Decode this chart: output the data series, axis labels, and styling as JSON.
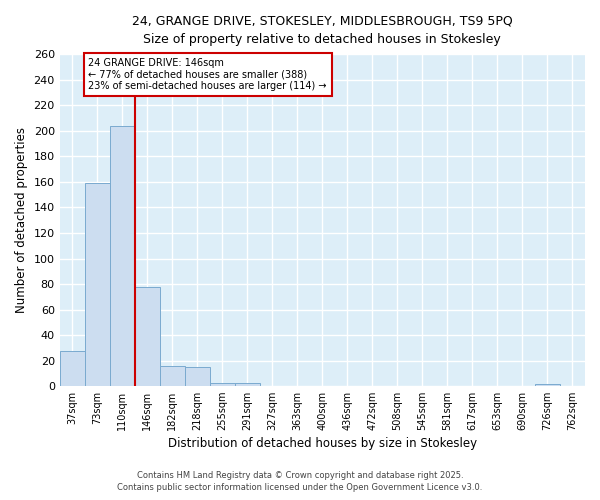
{
  "title_line1": "24, GRANGE DRIVE, STOKESLEY, MIDDLESBROUGH, TS9 5PQ",
  "title_line2": "Size of property relative to detached houses in Stokesley",
  "xlabel": "Distribution of detached houses by size in Stokesley",
  "ylabel": "Number of detached properties",
  "annotation_line1": "24 GRANGE DRIVE: 146sqm",
  "annotation_line2": "← 77% of detached houses are smaller (388)",
  "annotation_line3": "23% of semi-detached houses are larger (114) →",
  "bar_color": "#ccddf0",
  "bar_edge_color": "#7aaacf",
  "ref_line_color": "#cc0000",
  "categories": [
    "37sqm",
    "73sqm",
    "110sqm",
    "146sqm",
    "182sqm",
    "218sqm",
    "255sqm",
    "291sqm",
    "327sqm",
    "363sqm",
    "400sqm",
    "436sqm",
    "472sqm",
    "508sqm",
    "545sqm",
    "581sqm",
    "617sqm",
    "653sqm",
    "690sqm",
    "726sqm",
    "762sqm"
  ],
  "values": [
    28,
    159,
    204,
    78,
    16,
    15,
    3,
    3,
    0,
    0,
    0,
    0,
    0,
    0,
    0,
    0,
    0,
    0,
    0,
    2,
    0
  ],
  "ref_bar_idx": 3,
  "ylim": [
    0,
    260
  ],
  "yticks": [
    0,
    20,
    40,
    60,
    80,
    100,
    120,
    140,
    160,
    180,
    200,
    220,
    240,
    260
  ],
  "plot_bg_color": "#ddeef8",
  "fig_bg_color": "#ffffff",
  "grid_color": "#ffffff",
  "footnote1": "Contains HM Land Registry data © Crown copyright and database right 2025.",
  "footnote2": "Contains public sector information licensed under the Open Government Licence v3.0."
}
